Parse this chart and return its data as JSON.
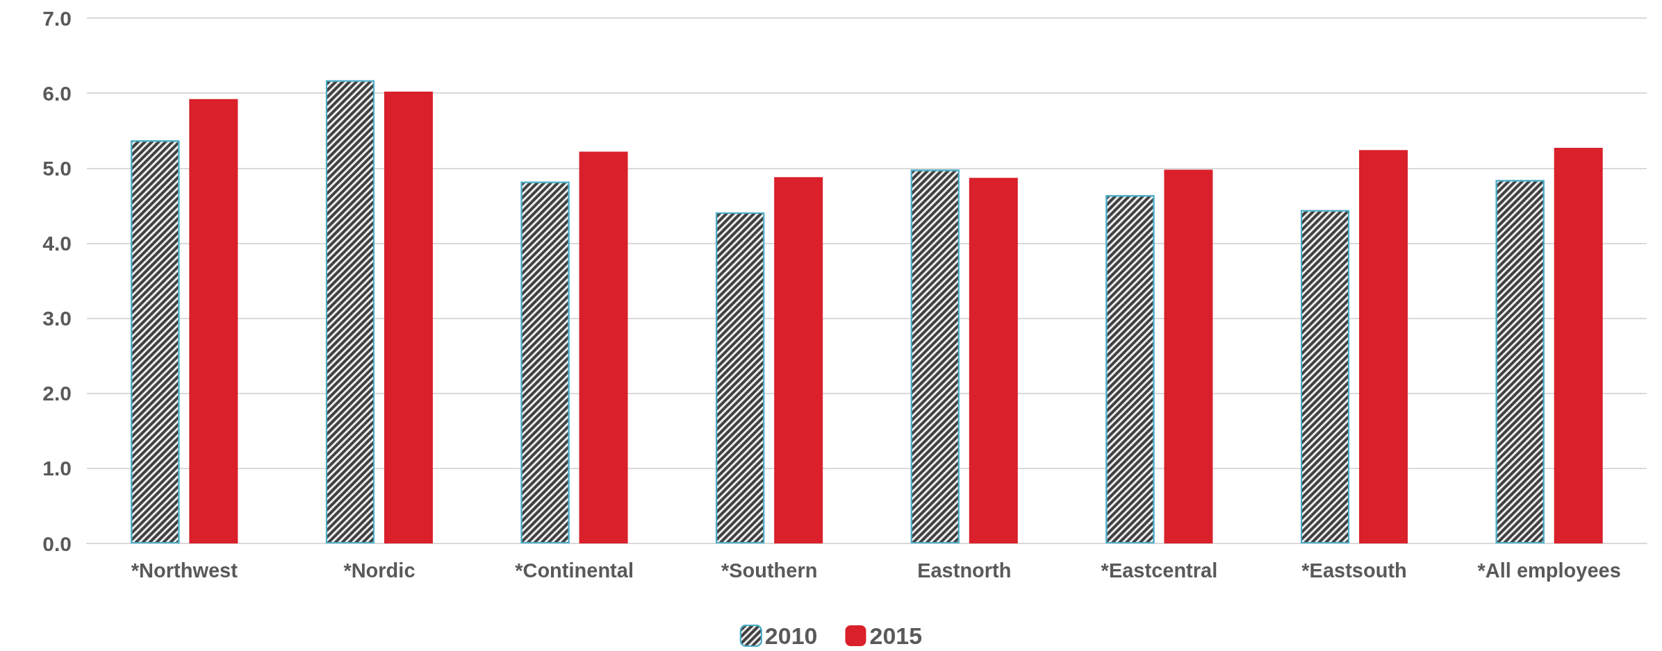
{
  "chart_data": {
    "type": "bar",
    "categories": [
      "*Northwest",
      "*Nordic",
      "*Continental",
      "*Southern",
      "Eastnorth",
      "*Eastcentral",
      "*Eastsouth",
      "*All employees"
    ],
    "series": [
      {
        "name": "2010",
        "color": "#404040",
        "values": [
          5.37,
          6.17,
          4.82,
          4.41,
          4.98,
          4.64,
          4.44,
          4.84
        ]
      },
      {
        "name": "2015",
        "color": "#d9202b",
        "values": [
          5.92,
          6.02,
          5.22,
          4.88,
          4.87,
          4.98,
          5.24,
          5.27
        ]
      }
    ],
    "ylim": [
      0,
      7
    ],
    "yticks": [
      {
        "value": 0,
        "label": "0.0"
      },
      {
        "value": 1,
        "label": "1.0"
      },
      {
        "value": 2,
        "label": "2.0"
      },
      {
        "value": 3,
        "label": "3.0"
      },
      {
        "value": 4,
        "label": "4.0"
      },
      {
        "value": 5,
        "label": "5.0"
      },
      {
        "value": 6,
        "label": "6.0"
      },
      {
        "value": 7,
        "label": "7.0"
      }
    ],
    "grid": "y",
    "legend": "bottom"
  }
}
